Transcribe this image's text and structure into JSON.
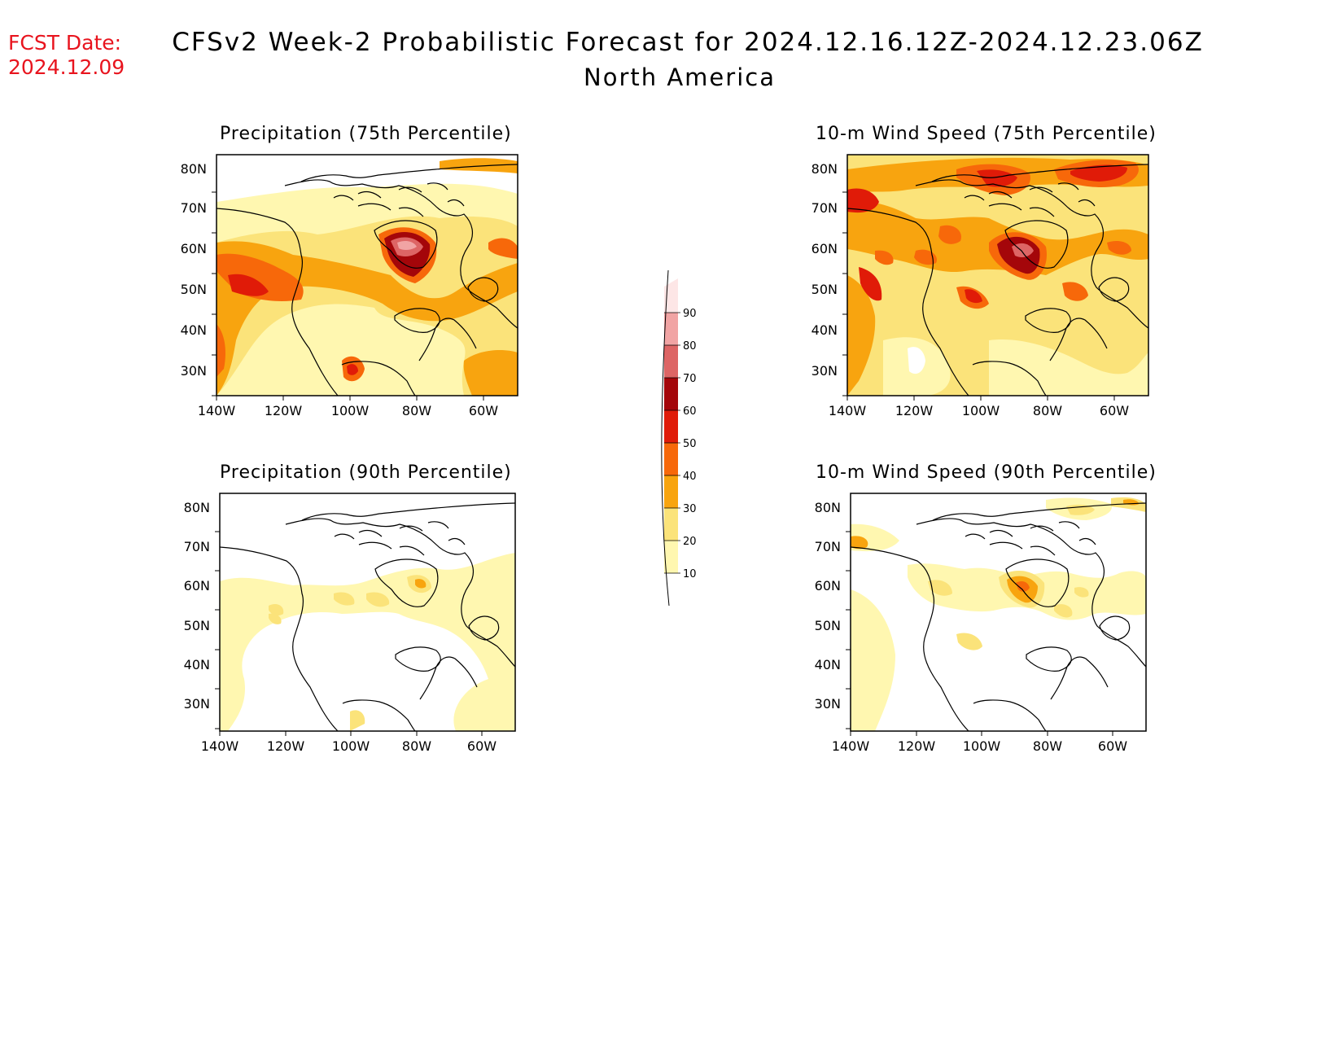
{
  "header": {
    "fcst_label": "FCST Date:",
    "fcst_date": "2024.12.09",
    "title": "CFSv2 Week-2 Probabilistic Forecast for 2024.12.16.12Z-2024.12.23.06Z",
    "region": "North America"
  },
  "colors": {
    "levels": [
      "#fff7b0",
      "#fbe37a",
      "#f8a40f",
      "#f7680a",
      "#e01b08",
      "#a4060a",
      "#dd6565",
      "#f1a4a4",
      "#fde6e6"
    ],
    "coast": "#000000",
    "fcst_text": "#e8141e"
  },
  "colorbar": {
    "labels": [
      "10",
      "20",
      "30",
      "40",
      "50",
      "60",
      "70",
      "80",
      "90"
    ]
  },
  "axes": {
    "lat_labels": [
      "30N",
      "40N",
      "50N",
      "60N",
      "70N",
      "80N"
    ],
    "lon_labels": [
      "140W",
      "120W",
      "100W",
      "80W",
      "60W"
    ]
  },
  "panels": [
    {
      "id": "precip75",
      "title": "Precipitation (75th Percentile)"
    },
    {
      "id": "wind75",
      "title": "10-m Wind Speed (75th Percentile)"
    },
    {
      "id": "precip90",
      "title": "Precipitation (90th Percentile)"
    },
    {
      "id": "wind90",
      "title": "10-m Wind Speed (90th Percentile)"
    }
  ]
}
